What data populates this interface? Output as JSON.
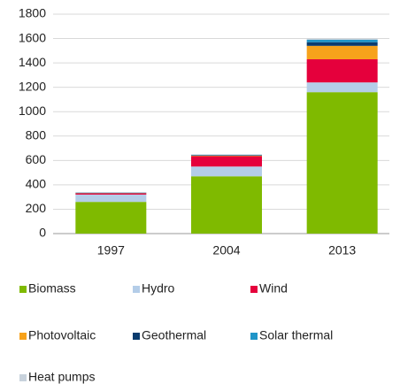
{
  "chart_data": {
    "type": "stacked_bar",
    "categories": [
      "1997",
      "2004",
      "2013"
    ],
    "series": [
      {
        "name": "Biomass",
        "color": "#7fba00",
        "values": [
          260,
          470,
          1160
        ]
      },
      {
        "name": "Hydro",
        "color": "#b4cde8",
        "values": [
          60,
          80,
          80
        ]
      },
      {
        "name": "Wind",
        "color": "#e5003c",
        "values": [
          10,
          85,
          190
        ]
      },
      {
        "name": "Photovoltaic",
        "color": "#f7a21b",
        "values": [
          2,
          5,
          110
        ]
      },
      {
        "name": "Geothermal",
        "color": "#0b3c6e",
        "values": [
          2,
          3,
          30
        ]
      },
      {
        "name": "Solar thermal",
        "color": "#1f95c8",
        "values": [
          2,
          3,
          20
        ]
      },
      {
        "name": "Heat pumps",
        "color": "#c8d2dc",
        "values": [
          4,
          4,
          10
        ]
      }
    ],
    "ylim": [
      0,
      1800
    ],
    "yticks": [
      0,
      200,
      400,
      600,
      800,
      1000,
      1200,
      1400,
      1600,
      1800
    ],
    "grid": true
  }
}
